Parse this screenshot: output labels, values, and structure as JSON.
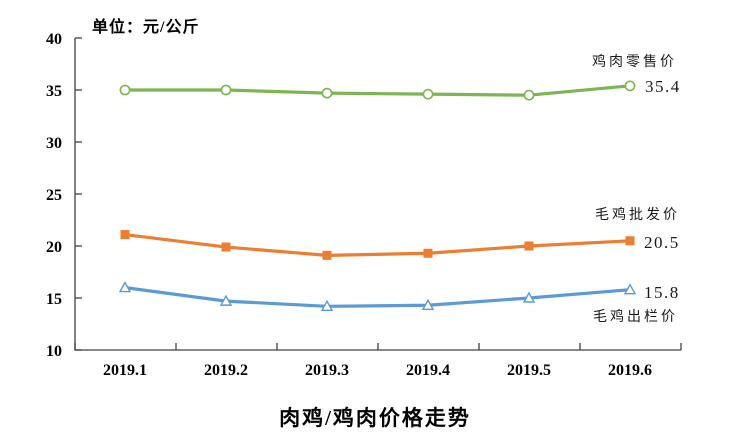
{
  "chart_data": {
    "type": "line",
    "title": "肉鸡/鸡肉价格走势",
    "unit_label": "单位：元/公斤",
    "categories": [
      "2019.1",
      "2019.2",
      "2019.3",
      "2019.4",
      "2019.5",
      "2019.6"
    ],
    "series": [
      {
        "name": "鸡肉零售价",
        "values": [
          35.0,
          35.0,
          34.7,
          34.6,
          34.5,
          35.4
        ],
        "color": "#7CB552",
        "marker": "circle-open",
        "end_label": "35.4"
      },
      {
        "name": "毛鸡批发价",
        "values": [
          21.1,
          19.9,
          19.1,
          19.3,
          20.0,
          20.5
        ],
        "color": "#ED7D31",
        "marker": "square",
        "end_label": "20.5"
      },
      {
        "name": "毛鸡出栏价",
        "values": [
          16.0,
          14.7,
          14.2,
          14.3,
          15.0,
          15.8
        ],
        "color": "#5B9BD5",
        "marker": "triangle-open",
        "end_label": "15.8"
      }
    ],
    "ylim": [
      10,
      40
    ],
    "yticks": [
      10,
      15,
      20,
      25,
      30,
      35,
      40
    ],
    "grid": false,
    "legend_position": "inline-right",
    "axis_color": "#404040"
  }
}
